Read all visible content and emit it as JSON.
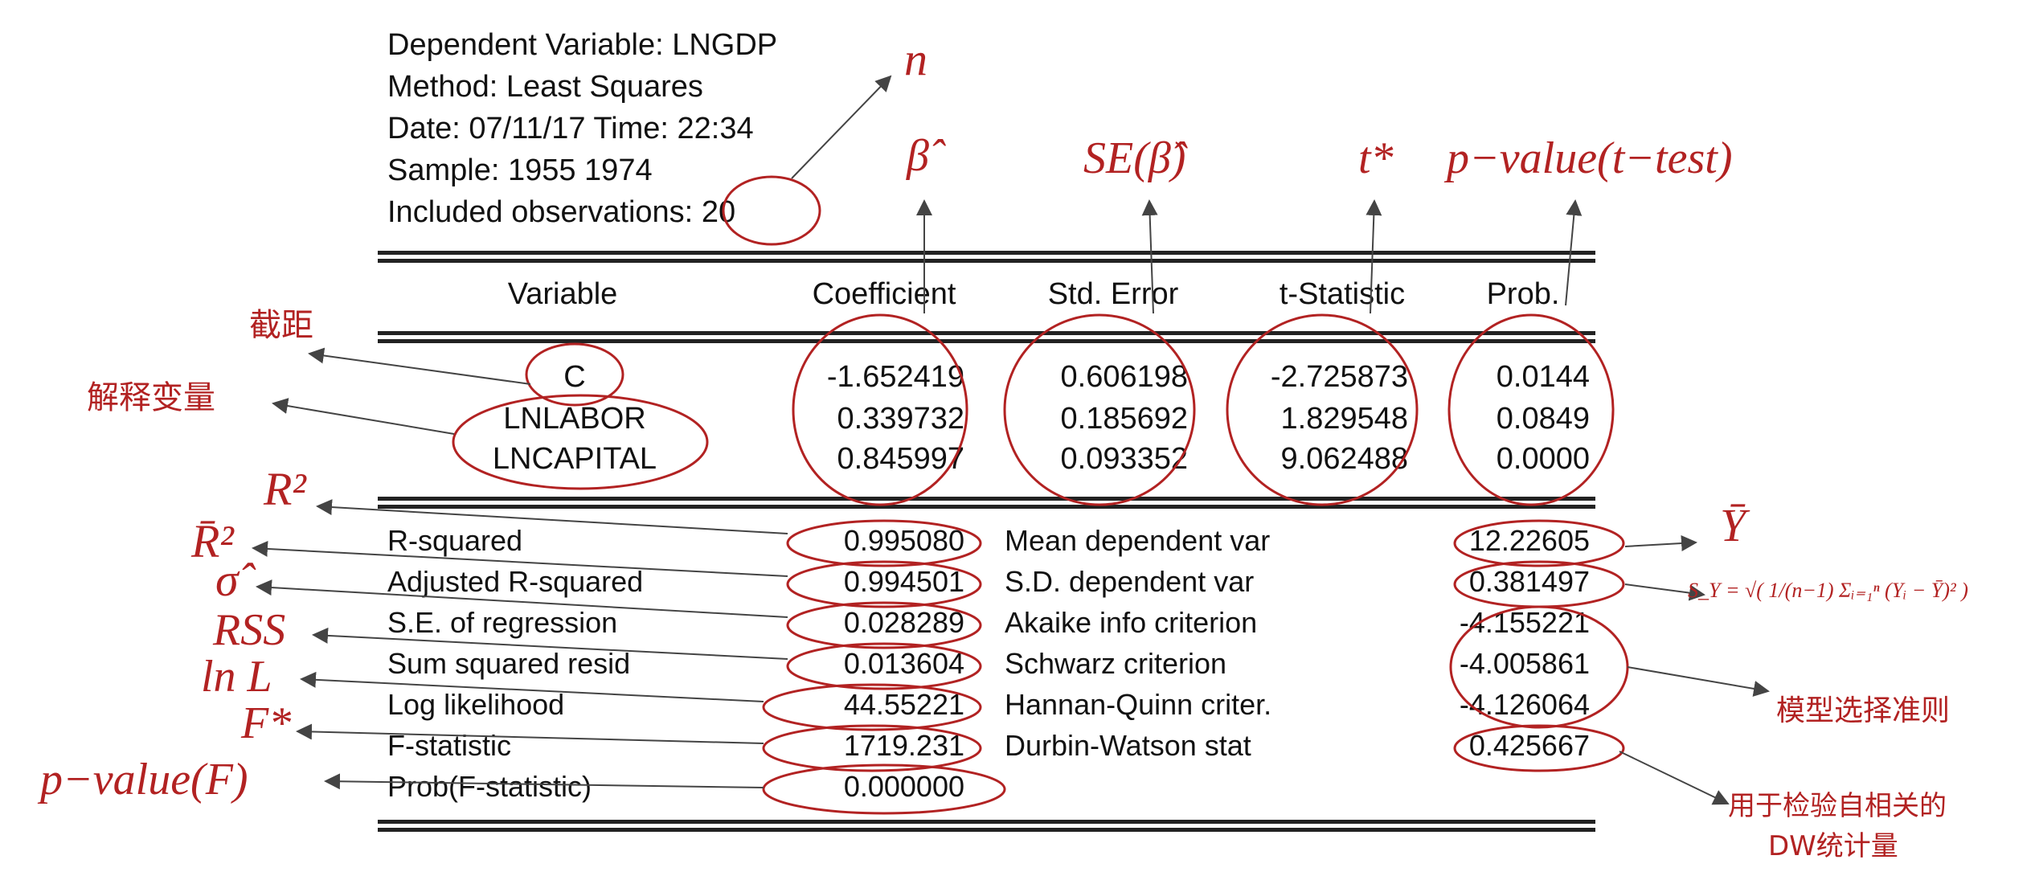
{
  "header": {
    "dependent_variable": "Dependent Variable: LNGDP",
    "method": "Method: Least Squares",
    "date": "Date: 07/11/17   Time: 22:34",
    "sample": "Sample: 1955 1974",
    "included_prefix": "Included observations:",
    "included_value": "20"
  },
  "coef_table": {
    "columns": [
      "Variable",
      "Coefficient",
      "Std. Error",
      "t-Statistic",
      "Prob."
    ],
    "rows": [
      {
        "variable": "C",
        "coefficient": "-1.652419",
        "std_error": "0.606198",
        "t_stat": "-2.725873",
        "prob": "0.0144"
      },
      {
        "variable": "LNLABOR",
        "coefficient": "0.339732",
        "std_error": "0.185692",
        "t_stat": "1.829548",
        "prob": "0.0849"
      },
      {
        "variable": "LNCAPITAL",
        "coefficient": "0.845997",
        "std_error": "0.093352",
        "t_stat": "9.062488",
        "prob": "0.0000"
      }
    ]
  },
  "stats": {
    "left": [
      {
        "label": "R-squared",
        "value": "0.995080"
      },
      {
        "label": "Adjusted R-squared",
        "value": "0.994501"
      },
      {
        "label": "S.E. of regression",
        "value": "0.028289"
      },
      {
        "label": "Sum squared resid",
        "value": "0.013604"
      },
      {
        "label": "Log likelihood",
        "value": "44.55221"
      },
      {
        "label": "F-statistic",
        "value": "1719.231"
      },
      {
        "label": "Prob(F-statistic)",
        "value": "0.000000"
      }
    ],
    "right": [
      {
        "label": "Mean dependent var",
        "value": "12.22605"
      },
      {
        "label": "S.D. dependent var",
        "value": "0.381497"
      },
      {
        "label": "Akaike info criterion",
        "value": "-4.155221"
      },
      {
        "label": "Schwarz criterion",
        "value": "-4.005861"
      },
      {
        "label": "Hannan-Quinn criter.",
        "value": "-4.126064"
      },
      {
        "label": "Durbin-Watson stat",
        "value": "0.425667"
      }
    ]
  },
  "annotations": {
    "n": "n",
    "beta_hat": "β̂",
    "se_beta": "SE(β̂)",
    "t_star": "t*",
    "p_value_t": "p−value(t−test)",
    "intercept": "截距",
    "explanatory": "解释变量",
    "r2": "R²",
    "r2_bar": "R̄²",
    "sigma_hat": "σ̂",
    "rss": "RSS",
    "ln_l": "ln L",
    "f_star": "F*",
    "p_value_f": "p−value(F)",
    "y_bar": "Ȳ",
    "s_y_formula": "S_Y = √( 1/(n−1) Σᵢ₌₁ⁿ (Yᵢ − Ȳ)² )",
    "model_selection": "模型选择准则",
    "dw_line1": "用于检验自相关的",
    "dw_line2": "DW统计量"
  },
  "colors": {
    "annotation": "#b22222",
    "text": "#111111"
  }
}
